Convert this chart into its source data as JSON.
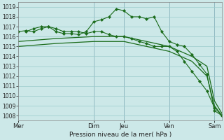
{
  "background_color": "#cce8e8",
  "grid_color": "#99cccc",
  "line_color": "#1a6b1a",
  "marker_color": "#1a6b1a",
  "xlabel": "Pression niveau de la mer( hPa )",
  "ylim": [
    1007.5,
    1019.5
  ],
  "yticks": [
    1008,
    1009,
    1010,
    1011,
    1012,
    1013,
    1014,
    1015,
    1016,
    1017,
    1018,
    1019
  ],
  "day_labels": [
    "Mer",
    "Dim",
    "Jeu",
    "Ven",
    "Sam"
  ],
  "day_positions": [
    0,
    10,
    14,
    20,
    26
  ],
  "xlim": [
    0,
    27
  ],
  "line1_marked": {
    "x": [
      0,
      1,
      2,
      3,
      4,
      5,
      6,
      7,
      8,
      9,
      10,
      11,
      12,
      13,
      14,
      15,
      16,
      17,
      18,
      19,
      20,
      21,
      22,
      23,
      24,
      25,
      26,
      27
    ],
    "y": [
      1016.5,
      1016.6,
      1016.5,
      1016.8,
      1017.0,
      1016.5,
      1016.3,
      1016.3,
      1016.2,
      1016.5,
      1017.5,
      1017.7,
      1018.0,
      1018.8,
      1018.6,
      1018.0,
      1018.0,
      1017.8,
      1018.0,
      1016.5,
      1015.5,
      1015.2,
      1015.0,
      1014.2,
      1013.2,
      1012.2,
      1008.5,
      1008.0
    ]
  },
  "line2_marked": {
    "x": [
      1,
      2,
      3,
      4,
      5,
      6,
      7,
      8,
      9,
      10,
      11,
      12,
      13,
      14,
      15,
      16,
      17,
      18,
      19,
      20,
      21,
      22,
      23,
      24,
      25,
      26,
      27
    ],
    "y": [
      1016.5,
      1016.8,
      1017.0,
      1017.0,
      1016.8,
      1016.5,
      1016.5,
      1016.5,
      1016.3,
      1016.5,
      1016.5,
      1016.2,
      1016.0,
      1016.0,
      1015.8,
      1015.5,
      1015.3,
      1015.0,
      1015.0,
      1015.0,
      1014.5,
      1013.5,
      1012.5,
      1011.5,
      1010.5,
      1008.8,
      1008.0
    ]
  },
  "line3_plain": {
    "x": [
      0,
      5,
      10,
      14,
      17,
      20,
      23,
      25,
      26,
      27
    ],
    "y": [
      1015.5,
      1015.8,
      1016.0,
      1016.0,
      1015.5,
      1015.0,
      1014.0,
      1013.0,
      1009.5,
      1008.2
    ]
  },
  "line4_plain": {
    "x": [
      0,
      5,
      10,
      14,
      17,
      20,
      23,
      25,
      26,
      27
    ],
    "y": [
      1015.0,
      1015.3,
      1015.5,
      1015.5,
      1015.0,
      1014.5,
      1013.5,
      1012.0,
      1009.0,
      1008.0
    ]
  }
}
